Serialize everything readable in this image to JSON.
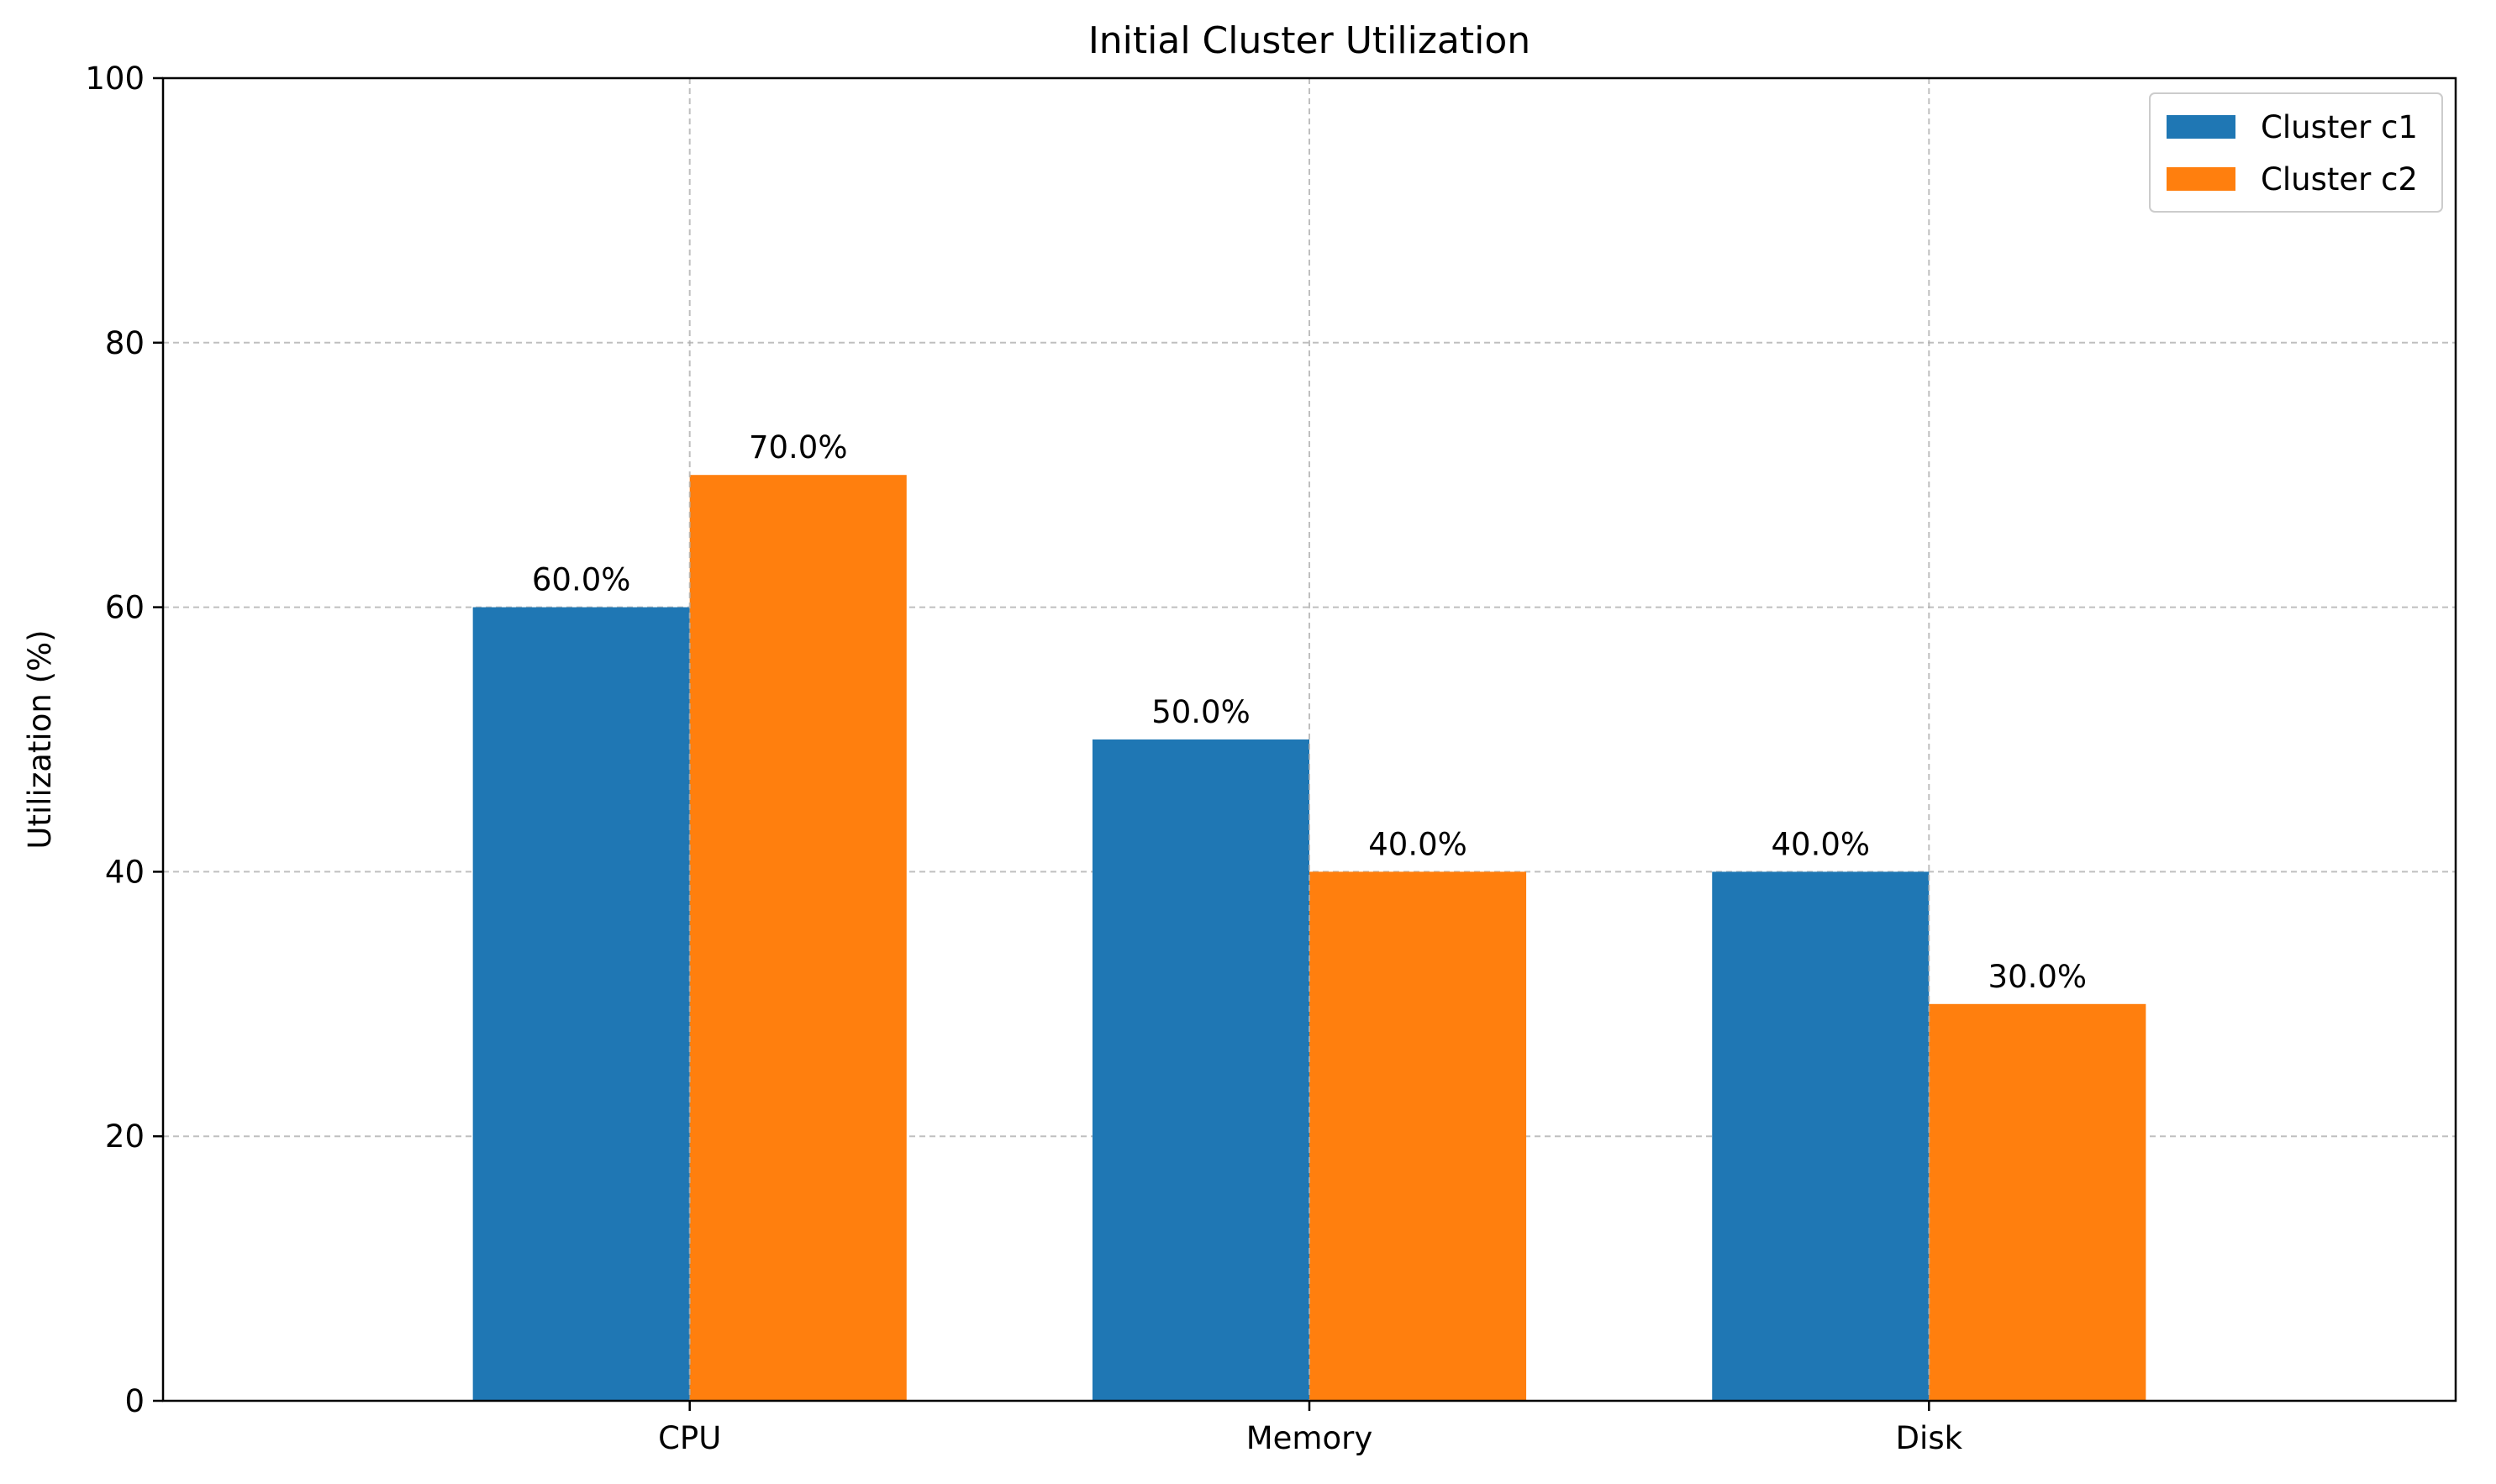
{
  "chart_data": {
    "type": "bar",
    "title": "Initial Cluster Utilization",
    "xlabel": "",
    "ylabel": "Utilization (%)",
    "categories": [
      "CPU",
      "Memory",
      "Disk"
    ],
    "series": [
      {
        "name": "Cluster c1",
        "values": [
          60.0,
          50.0,
          40.0
        ],
        "color": "#1f77b4",
        "labels": [
          "60.0%",
          "50.0%",
          "40.0%"
        ]
      },
      {
        "name": "Cluster c2",
        "values": [
          70.0,
          40.0,
          30.0
        ],
        "color": "#ff7f0e",
        "labels": [
          "70.0%",
          "40.0%",
          "30.0%"
        ]
      }
    ],
    "ylim": [
      0,
      100
    ],
    "yticks": [
      0,
      20,
      40,
      60,
      80,
      100
    ],
    "ytick_labels": [
      "0",
      "20",
      "40",
      "60",
      "80",
      "100"
    ],
    "grid": true,
    "legend_position": "top-right"
  }
}
